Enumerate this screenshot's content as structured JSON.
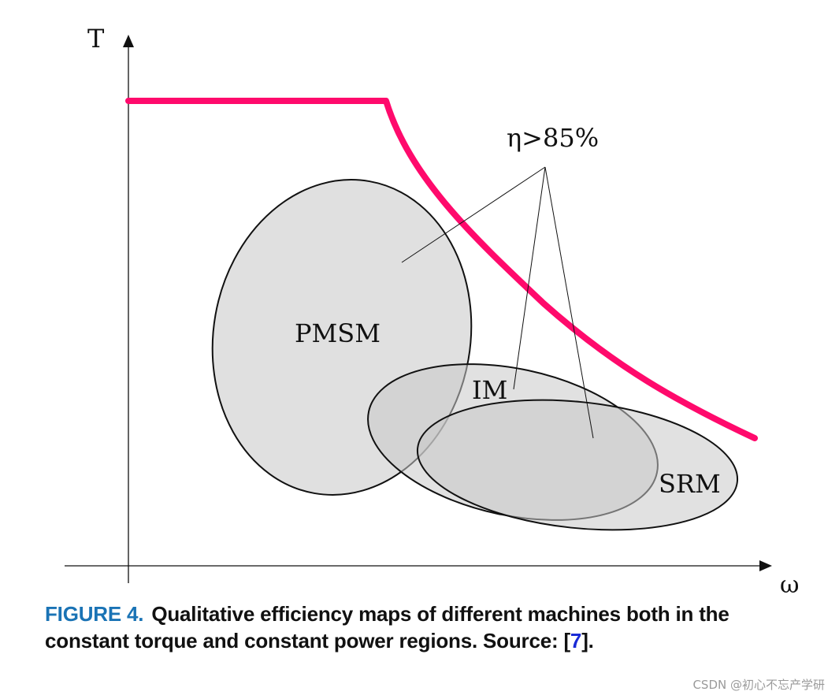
{
  "diagram": {
    "axes": {
      "y_label": "T",
      "x_label": "ω"
    },
    "annotation": "η>85%",
    "regions": [
      {
        "name": "PMSM",
        "label": "PMSM"
      },
      {
        "name": "IM",
        "label": "IM"
      },
      {
        "name": "SRM",
        "label": "SRM"
      }
    ],
    "colors": {
      "envelope": "#ff0a6c",
      "region_fill": "#d9d9d9",
      "outline": "#111111"
    }
  },
  "caption": {
    "figure_label": "FIGURE 4.",
    "text_before_ref": "Qualitative efficiency maps of different machines both in the constant torque and constant power regions. Source: [",
    "ref": "7",
    "text_after_ref": "]."
  },
  "watermark": "CSDN @初心不忘产学研"
}
